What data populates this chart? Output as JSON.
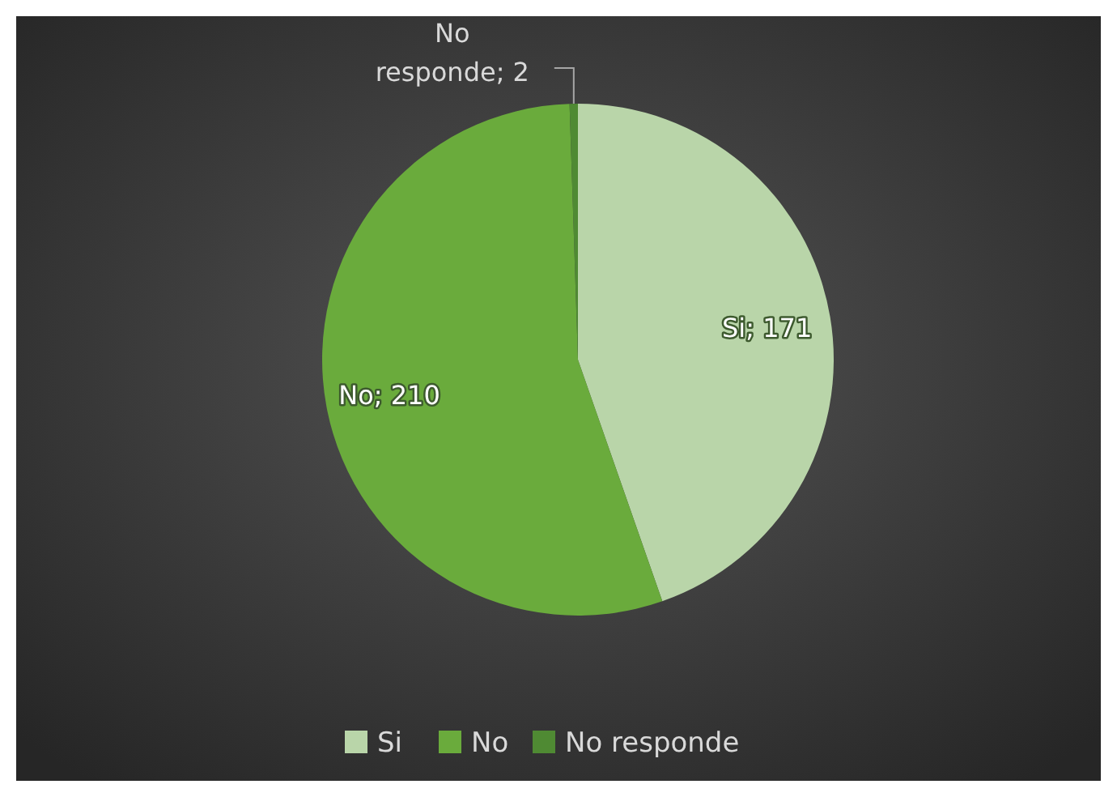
{
  "chart_data": {
    "type": "pie",
    "categories": [
      "Si",
      "No",
      "No responde"
    ],
    "values": [
      171,
      210,
      2
    ],
    "colors": [
      "#b9d5a9",
      "#6aab3c",
      "#4f8a33"
    ],
    "value_labels": [
      "Si; 171",
      "No; 210",
      "No responde; 2"
    ],
    "legend": "bottom"
  }
}
